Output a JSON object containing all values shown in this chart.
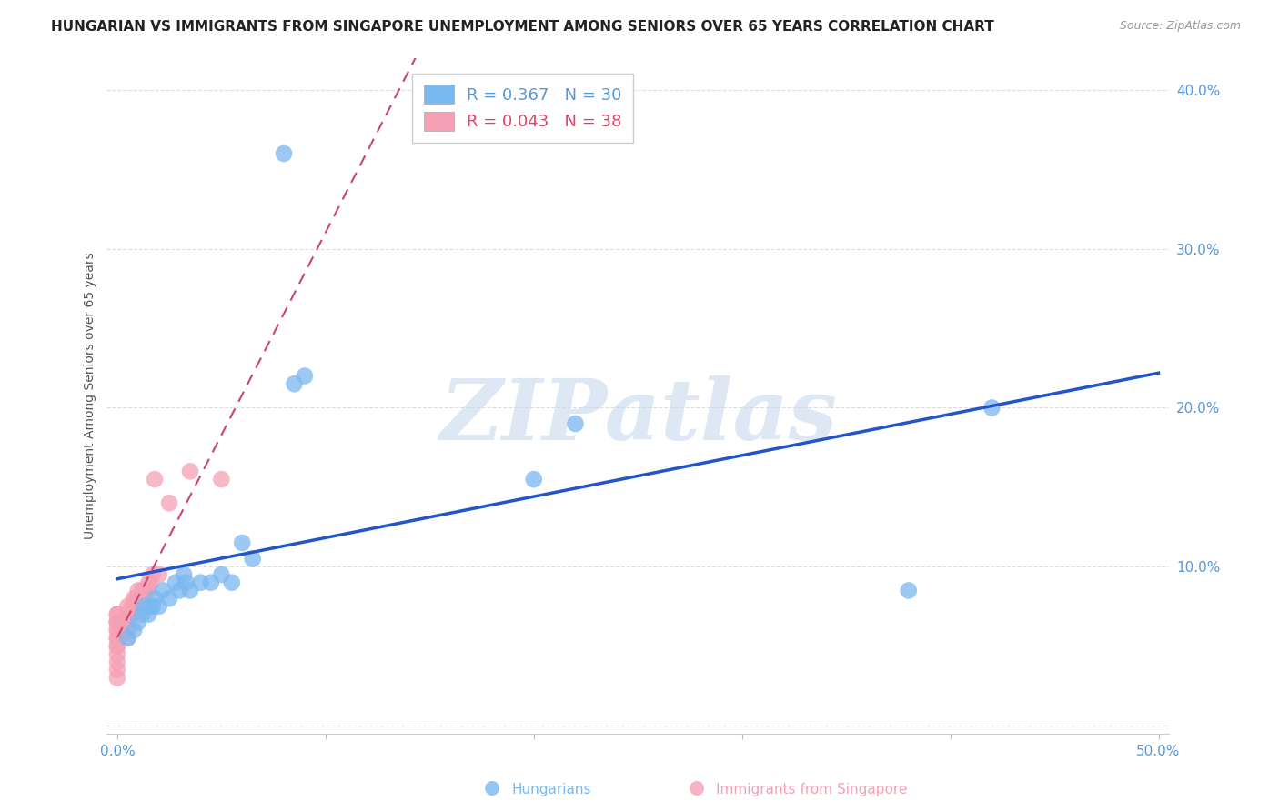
{
  "title": "HUNGARIAN VS IMMIGRANTS FROM SINGAPORE UNEMPLOYMENT AMONG SENIORS OVER 65 YEARS CORRELATION CHART",
  "source": "Source: ZipAtlas.com",
  "xlabel": "",
  "ylabel": "Unemployment Among Seniors over 65 years",
  "xlim": [
    -0.005,
    0.505
  ],
  "ylim": [
    -0.005,
    0.42
  ],
  "yticks": [
    0.0,
    0.1,
    0.2,
    0.3,
    0.4
  ],
  "ytick_labels": [
    "",
    "10.0%",
    "20.0%",
    "30.0%",
    "40.0%"
  ],
  "xticks": [
    0.0,
    0.1,
    0.2,
    0.3,
    0.4,
    0.5
  ],
  "xtick_labels": [
    "0.0%",
    "",
    "",
    "",
    "",
    "50.0%"
  ],
  "hungarian_color": "#7ab8f0",
  "singapore_color": "#f5a0b5",
  "hungarian_line_color": "#2255cc",
  "singapore_line_color": "#cc4466",
  "hungarian_R": 0.367,
  "hungarian_N": 30,
  "singapore_R": 0.043,
  "singapore_N": 38,
  "hungarian_x": [
    0.005,
    0.008,
    0.01,
    0.012,
    0.013,
    0.015,
    0.016,
    0.017,
    0.018,
    0.02,
    0.022,
    0.025,
    0.028,
    0.03,
    0.032,
    0.033,
    0.035,
    0.04,
    0.045,
    0.05,
    0.055,
    0.06,
    0.065,
    0.08,
    0.085,
    0.09,
    0.2,
    0.22,
    0.38,
    0.42
  ],
  "hungarian_y": [
    0.055,
    0.06,
    0.065,
    0.07,
    0.075,
    0.07,
    0.075,
    0.075,
    0.08,
    0.075,
    0.085,
    0.08,
    0.09,
    0.085,
    0.095,
    0.09,
    0.085,
    0.09,
    0.09,
    0.095,
    0.09,
    0.115,
    0.105,
    0.36,
    0.215,
    0.22,
    0.155,
    0.19,
    0.085,
    0.2
  ],
  "singapore_x": [
    0.0,
    0.0,
    0.0,
    0.0,
    0.0,
    0.0,
    0.0,
    0.0,
    0.0,
    0.0,
    0.0,
    0.0,
    0.0,
    0.0,
    0.0,
    0.005,
    0.005,
    0.005,
    0.005,
    0.005,
    0.007,
    0.007,
    0.008,
    0.008,
    0.009,
    0.01,
    0.01,
    0.012,
    0.013,
    0.015,
    0.015,
    0.016,
    0.017,
    0.018,
    0.02,
    0.025,
    0.035,
    0.05
  ],
  "singapore_y": [
    0.03,
    0.035,
    0.04,
    0.045,
    0.05,
    0.05,
    0.055,
    0.055,
    0.06,
    0.06,
    0.065,
    0.065,
    0.065,
    0.07,
    0.07,
    0.055,
    0.06,
    0.065,
    0.07,
    0.075,
    0.07,
    0.075,
    0.075,
    0.08,
    0.08,
    0.08,
    0.085,
    0.085,
    0.085,
    0.085,
    0.09,
    0.09,
    0.095,
    0.155,
    0.095,
    0.14,
    0.16,
    0.155
  ],
  "watermark_text": "ZIPatlas",
  "watermark_color": "#c8d8ee",
  "background_color": "#ffffff",
  "grid_color": "#dddddd",
  "tick_color": "#5599dd",
  "title_fontsize": 11,
  "axis_label_fontsize": 10,
  "tick_fontsize": 11
}
